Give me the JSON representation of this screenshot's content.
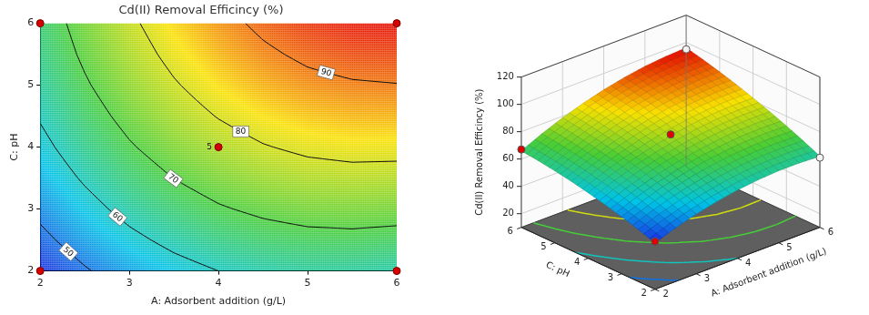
{
  "chart_data": [
    {
      "type": "contour",
      "title": "Cd(II) Removal Efficincy (%)",
      "x_label": "A: Adsorbent addition (g/L)",
      "y_label": "C: pH",
      "xlim": [
        2,
        6
      ],
      "ylim": [
        2,
        6
      ],
      "xticks": [
        2,
        3,
        4,
        5,
        6
      ],
      "yticks": [
        2,
        3,
        4,
        5,
        6
      ],
      "grid": false,
      "grid_x": [
        2,
        2.5,
        3,
        3.5,
        4,
        4.5,
        5,
        5.5,
        6
      ],
      "grid_y": [
        2,
        2.5,
        3,
        3.5,
        4,
        4.5,
        5,
        5.5,
        6
      ],
      "cells": [
        [
          44,
          49.3,
          53.8,
          57.3,
          60,
          61.8,
          62.8,
          62.8,
          62
        ],
        [
          48.1,
          53.6,
          58.2,
          61.9,
          64.8,
          66.8,
          67.9,
          68.2,
          67.6
        ],
        [
          51.8,
          57.4,
          62.3,
          66.2,
          69.3,
          71.4,
          72.8,
          73.2,
          72.8
        ],
        [
          55.1,
          60.9,
          65.9,
          70.1,
          73.3,
          75.7,
          77.2,
          77.8,
          77.6
        ],
        [
          58,
          64.1,
          69.3,
          73.6,
          77,
          79.6,
          81.3,
          82.1,
          82
        ],
        [
          60.6,
          66.8,
          72.2,
          76.7,
          80.3,
          83.1,
          84.9,
          85.9,
          86.1
        ],
        [
          62.8,
          69.2,
          74.8,
          79.4,
          83.3,
          86.2,
          88.3,
          89.4,
          89.8
        ],
        [
          64.6,
          71.2,
          76.9,
          81.8,
          85.8,
          88.9,
          91.2,
          92.6,
          93.1
        ],
        [
          66,
          72.8,
          78.8,
          83.8,
          88,
          91.3,
          93.8,
          95.3,
          96
        ]
      ],
      "contour_levels": [
        50,
        60,
        70,
        80,
        90
      ],
      "design_points": [
        {
          "x": 2,
          "y": 2
        },
        {
          "x": 2,
          "y": 6
        },
        {
          "x": 6,
          "y": 2
        },
        {
          "x": 6,
          "y": 6
        },
        {
          "x": 4,
          "y": 4,
          "label": "5"
        }
      ]
    },
    {
      "type": "surface",
      "z_label": "Cd(II) Removal Efficincy (%)",
      "x_label": "A: Adsorbent addition (g/L)",
      "y_label": "C: pH",
      "xlim": [
        2,
        6
      ],
      "ylim": [
        2,
        6
      ],
      "zlim": [
        10,
        120
      ],
      "xticks": [
        2,
        3,
        4,
        5,
        6
      ],
      "yticks": [
        2,
        3,
        4,
        5,
        6
      ],
      "zticks": [
        20,
        40,
        60,
        80,
        100,
        120
      ],
      "grid": true,
      "grid_x": [
        2,
        2.5,
        3,
        3.5,
        4,
        4.5,
        5,
        5.5,
        6
      ],
      "grid_y": [
        2,
        2.5,
        3,
        3.5,
        4,
        4.5,
        5,
        5.5,
        6
      ],
      "cells": [
        [
          44,
          49.3,
          53.8,
          57.3,
          60,
          61.8,
          62.8,
          62.8,
          62
        ],
        [
          48.1,
          53.6,
          58.2,
          61.9,
          64.8,
          66.8,
          67.9,
          68.2,
          67.6
        ],
        [
          51.8,
          57.4,
          62.3,
          66.2,
          69.3,
          71.4,
          72.8,
          73.2,
          72.8
        ],
        [
          55.1,
          60.9,
          65.9,
          70.1,
          73.3,
          75.7,
          77.2,
          77.8,
          77.6
        ],
        [
          58,
          64.1,
          69.3,
          73.6,
          77,
          79.6,
          81.3,
          82.1,
          82
        ],
        [
          60.6,
          66.8,
          72.2,
          76.7,
          80.3,
          83.1,
          84.9,
          85.9,
          86.1
        ],
        [
          62.8,
          69.2,
          74.8,
          79.4,
          83.3,
          86.2,
          88.3,
          89.4,
          89.8
        ],
        [
          64.6,
          71.2,
          76.9,
          81.8,
          85.8,
          88.9,
          91.2,
          92.6,
          93.1
        ],
        [
          66,
          72.8,
          78.8,
          83.8,
          88,
          91.3,
          93.8,
          95.3,
          96
        ]
      ],
      "contour_levels": [
        50,
        60,
        70,
        80,
        90
      ],
      "design_points": [
        {
          "x": 2,
          "y": 2,
          "z": 45
        },
        {
          "x": 2,
          "y": 6,
          "z": 67
        },
        {
          "x": 6,
          "y": 2,
          "z": 61
        },
        {
          "x": 6,
          "y": 6,
          "z": 95
        },
        {
          "x": 4,
          "y": 4,
          "z": 78
        }
      ]
    }
  ]
}
